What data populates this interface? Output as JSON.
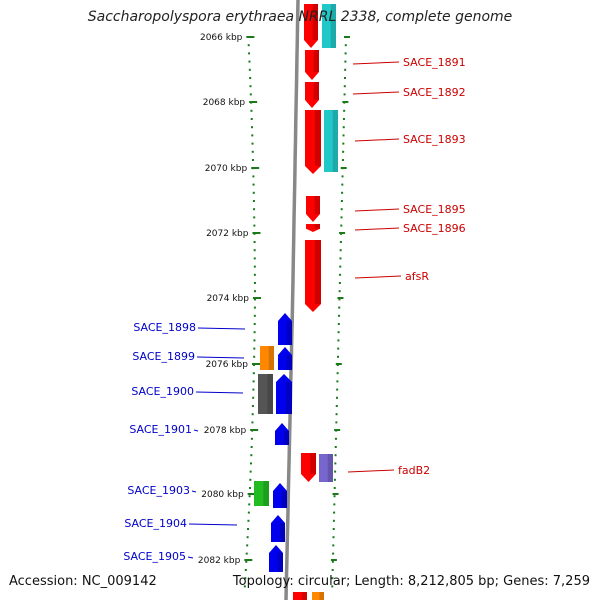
{
  "title": "Saccharopolyspora erythraea NRRL 2338, complete genome",
  "footer": {
    "accession": "Accession: NC_009142",
    "summary": "Topology: circular; Length: 8,212,805 bp; Genes: 7,259"
  },
  "scale_labels": [
    "2066 kbp",
    "2068 kbp",
    "2070 kbp",
    "2072 kbp",
    "2074 kbp",
    "2076 kbp",
    "2078 kbp",
    "2080 kbp",
    "2082 kbp"
  ],
  "colors": {
    "scale_green": "#1a7a1a",
    "backbone_gray": "#888888",
    "forward_label": "#cc0000",
    "reverse_label": "#0000cc",
    "gene_red": "#ff0000",
    "gene_blue": "#0000ee",
    "gene_cyan": "#22c8c8",
    "gene_pink": "#f8c8c8",
    "gene_orange": "#ff8800",
    "gene_gray": "#555555",
    "gene_green": "#22bb22",
    "gene_purple": "#7766cc"
  },
  "forward_labels": [
    "SACE_1891",
    "SACE_1892",
    "SACE_1893",
    "SACE_1895",
    "SACE_1896",
    "afsR",
    "fadB2"
  ],
  "reverse_labels": [
    "SACE_1898",
    "SACE_1899",
    "SACE_1900",
    "SACE_1901",
    "SACE_1903",
    "SACE_1904",
    "SACE_1905"
  ]
}
